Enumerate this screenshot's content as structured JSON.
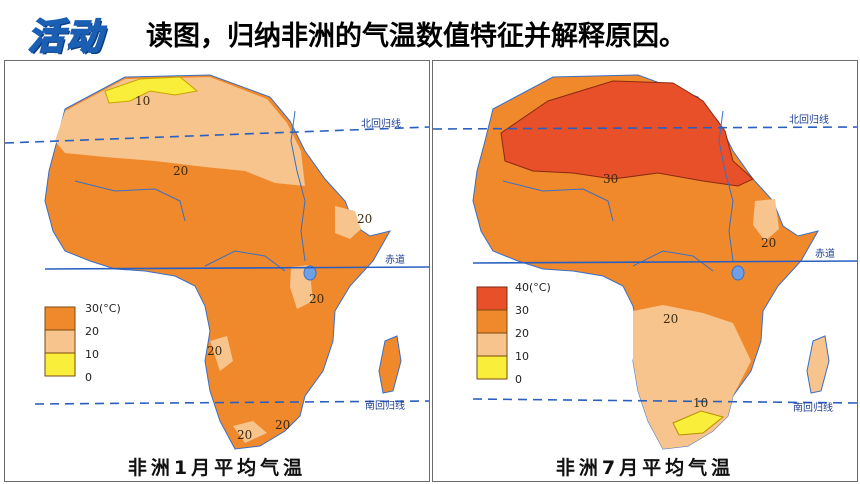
{
  "header": {
    "badge": "活动",
    "title": "读图，归纳非洲的气温数值特征并解释原因。"
  },
  "colors": {
    "t40": "#e8502a",
    "t30": "#f0892c",
    "t20": "#f6c48c",
    "t10": "#f9ee3a",
    "ocean": "#ffffff",
    "line": "#2a5fbf"
  },
  "map_jan": {
    "caption": "非洲1月平均气温",
    "lines": {
      "tropic_n": "北回归线",
      "equator": "赤道",
      "tropic_s": "南回归线"
    },
    "isotherms": [
      "10",
      "20",
      "20",
      "20",
      "20",
      "20",
      "20"
    ],
    "legend": {
      "labels": [
        "30(°C)",
        "20",
        "10",
        "0"
      ]
    }
  },
  "map_jul": {
    "caption": "非洲7月平均气温",
    "lines": {
      "tropic_n": "北回归线",
      "equator": "赤道",
      "tropic_s": "南回归线"
    },
    "isotherms": [
      "30",
      "20",
      "20",
      "10"
    ],
    "legend": {
      "labels": [
        "40(°C)",
        "30",
        "20",
        "10",
        "0"
      ]
    }
  }
}
